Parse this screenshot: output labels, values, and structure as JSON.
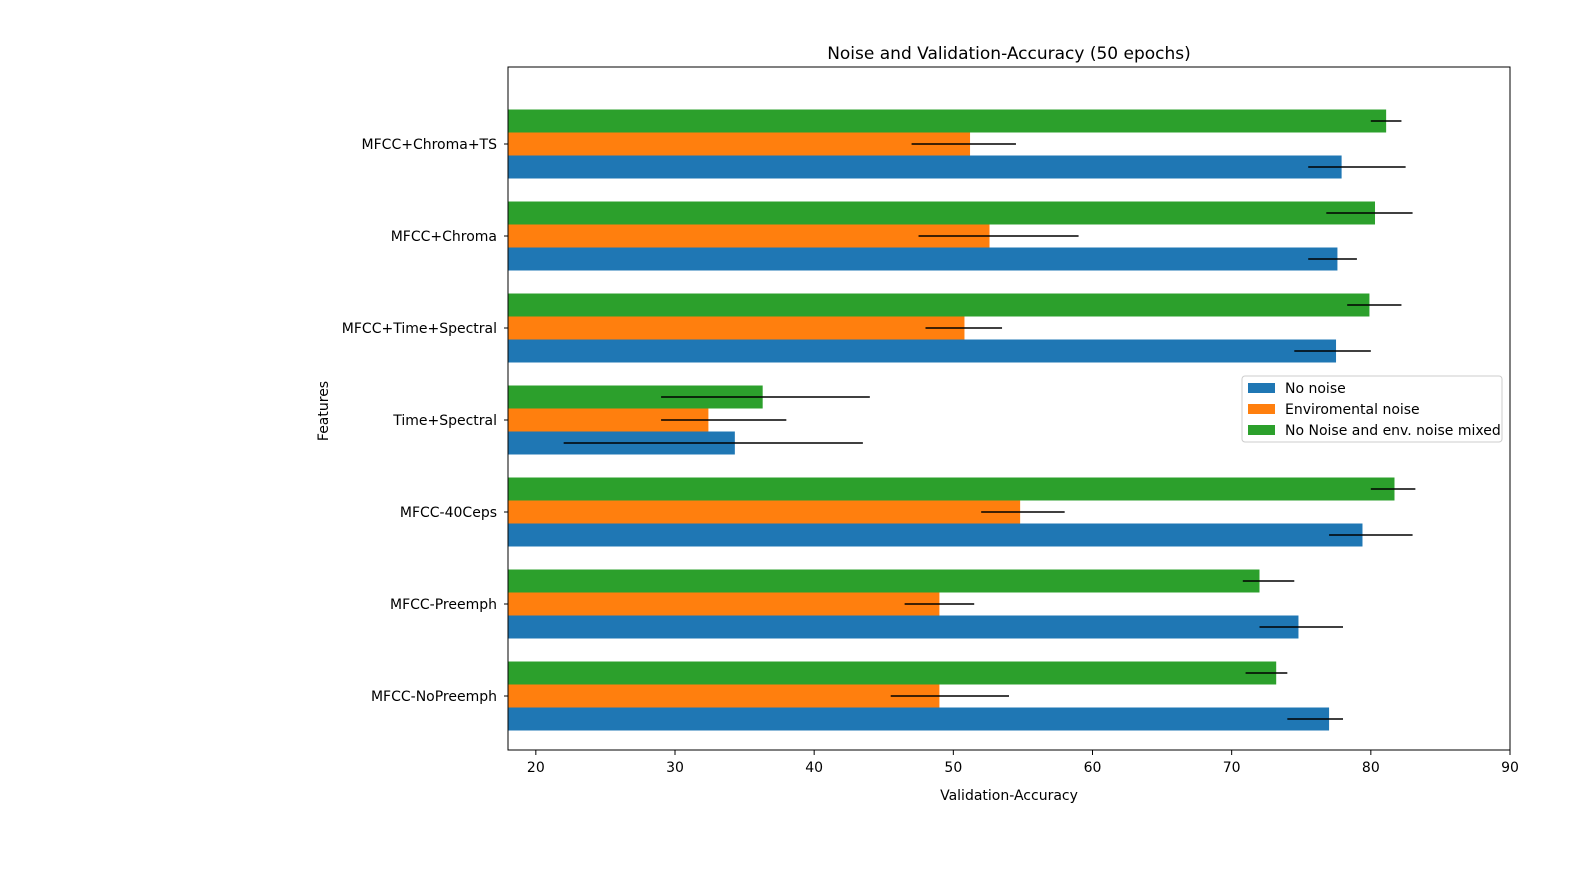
{
  "chart_data": {
    "type": "bar",
    "orientation": "horizontal",
    "title": "Noise and Validation-Accuracy (50 epochs)",
    "xlabel": "Validation-Accuracy",
    "ylabel": "Features",
    "xlim": [
      18,
      90
    ],
    "xticks": [
      20,
      30,
      40,
      50,
      60,
      70,
      80,
      90
    ],
    "categories": [
      "MFCC-NoPreemph",
      "MFCC-Preemph",
      "MFCC-40Ceps",
      "Time+Spectral",
      "MFCC+Time+Spectral",
      "MFCC+Chroma",
      "MFCC+Chroma+TS"
    ],
    "legend_position": "center-right",
    "grid": false,
    "series": [
      {
        "name": "No noise",
        "color": "#1f77b4",
        "values": [
          77.0,
          74.8,
          79.4,
          34.3,
          77.5,
          77.6,
          77.9
        ],
        "error_low": [
          74.0,
          72.0,
          77.0,
          22.0,
          74.5,
          75.5,
          75.5
        ],
        "error_high": [
          78.0,
          78.0,
          83.0,
          43.5,
          80.0,
          79.0,
          82.5
        ]
      },
      {
        "name": "Enviromental noise",
        "color": "#ff7f0e",
        "values": [
          49.0,
          49.0,
          54.8,
          32.4,
          50.8,
          52.6,
          51.2
        ],
        "error_low": [
          45.5,
          46.5,
          52.0,
          29.0,
          48.0,
          47.5,
          47.0
        ],
        "error_high": [
          54.0,
          51.5,
          58.0,
          38.0,
          53.5,
          59.0,
          54.5
        ]
      },
      {
        "name": "No Noise and env. noise mixed",
        "color": "#2ca02c",
        "values": [
          73.2,
          72.0,
          81.7,
          36.3,
          79.9,
          80.3,
          81.1
        ],
        "error_low": [
          71.0,
          70.8,
          80.0,
          29.0,
          78.3,
          76.8,
          80.0
        ],
        "error_high": [
          74.0,
          74.5,
          83.2,
          44.0,
          82.2,
          83.0,
          82.2
        ]
      }
    ]
  }
}
